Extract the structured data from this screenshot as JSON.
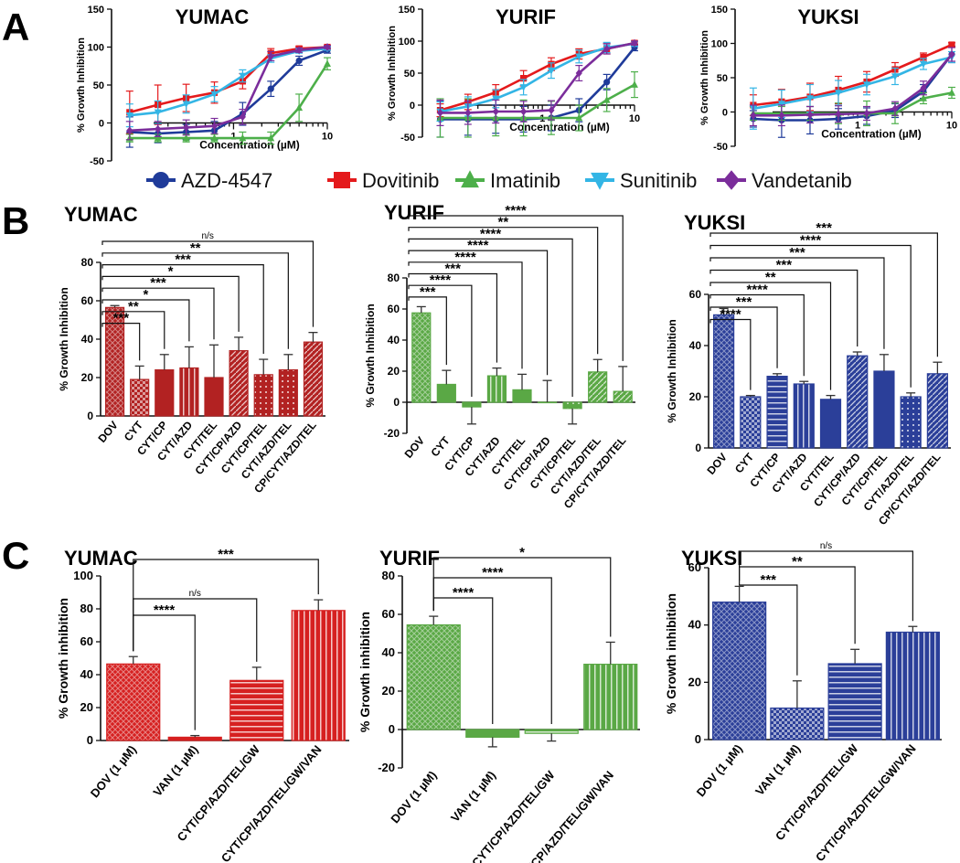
{
  "panel_letters": {
    "A": "A",
    "B": "B",
    "C": "C"
  },
  "legend": [
    {
      "name": "AZD-4547",
      "color": "#1f3b9a",
      "marker": "circle"
    },
    {
      "name": "Dovitinib",
      "color": "#e41a1c",
      "marker": "square"
    },
    {
      "name": "Imatinib",
      "color": "#4daf4a",
      "marker": "triangle-up"
    },
    {
      "name": "Sunitinib",
      "color": "#33b5e5",
      "marker": "triangle-down"
    },
    {
      "name": "Vandetanib",
      "color": "#7b2d9b",
      "marker": "diamond"
    }
  ],
  "chart_data": [
    {
      "id": "A-YUMAC",
      "type": "line",
      "title": "YUMAC",
      "xlabel": "Concentration (µM)",
      "ylabel": "% Growth Inhibition",
      "xscale": "log",
      "xlim": [
        0.05,
        10
      ],
      "ylim": [
        -50,
        150
      ],
      "yticks": [
        -50,
        0,
        50,
        100,
        150
      ],
      "xtick_labels": [
        {
          "value": 1,
          "label": "1"
        },
        {
          "value": 10,
          "label": "10"
        }
      ],
      "x": [
        0.078,
        0.156,
        0.3125,
        0.625,
        1.25,
        2.5,
        5,
        10
      ],
      "series": [
        {
          "name": "AZD-4547",
          "values": [
            -12,
            -14,
            -12,
            -10,
            12,
            45,
            82,
            96
          ],
          "errors": [
            20,
            12,
            10,
            12,
            15,
            10,
            6,
            4
          ]
        },
        {
          "name": "Dovitinib",
          "values": [
            14,
            24,
            33,
            40,
            55,
            92,
            98,
            100
          ],
          "errors": [
            28,
            26,
            18,
            14,
            10,
            6,
            3,
            2
          ]
        },
        {
          "name": "Imatinib",
          "values": [
            -20,
            -20,
            -20,
            -20,
            -20,
            -20,
            20,
            78
          ],
          "errors": [
            5,
            5,
            5,
            5,
            8,
            8,
            18,
            8
          ]
        },
        {
          "name": "Sunitinib",
          "values": [
            10,
            14,
            25,
            38,
            62,
            85,
            95,
            98
          ],
          "errors": [
            15,
            15,
            12,
            10,
            8,
            5,
            3,
            2
          ]
        },
        {
          "name": "Vandetanib",
          "values": [
            -10,
            -8,
            -6,
            -4,
            8,
            88,
            96,
            100
          ],
          "errors": [
            12,
            10,
            10,
            10,
            10,
            6,
            3,
            2
          ]
        }
      ]
    },
    {
      "id": "A-YURIF",
      "type": "line",
      "title": "YURIF",
      "xlabel": "Concentration (µM)",
      "ylabel": "% Growth Inhibition",
      "xscale": "log",
      "xlim": [
        0.05,
        10
      ],
      "ylim": [
        -50,
        150
      ],
      "yticks": [
        -50,
        0,
        50,
        100,
        150
      ],
      "xtick_labels": [
        {
          "value": 1,
          "label": "1"
        },
        {
          "value": 10,
          "label": "10"
        }
      ],
      "x": [
        0.078,
        0.156,
        0.3125,
        0.625,
        1.25,
        2.5,
        5,
        10
      ],
      "series": [
        {
          "name": "AZD-4547",
          "values": [
            -22,
            -22,
            -22,
            -22,
            -20,
            -8,
            36,
            90
          ],
          "errors": [
            28,
            25,
            22,
            20,
            20,
            18,
            12,
            5
          ]
        },
        {
          "name": "Dovitinib",
          "values": [
            -8,
            5,
            20,
            42,
            64,
            80,
            88,
            97
          ],
          "errors": [
            10,
            12,
            12,
            12,
            10,
            8,
            8,
            3
          ]
        },
        {
          "name": "Imatinib",
          "values": [
            -20,
            -20,
            -20,
            -20,
            -20,
            -20,
            8,
            32
          ],
          "errors": [
            30,
            30,
            28,
            28,
            26,
            20,
            18,
            20
          ]
        },
        {
          "name": "Sunitinib",
          "values": [
            -10,
            -2,
            10,
            28,
            54,
            76,
            90,
            96
          ],
          "errors": [
            15,
            15,
            14,
            12,
            12,
            10,
            8,
            4
          ]
        },
        {
          "name": "Vandetanib",
          "values": [
            -12,
            -12,
            -10,
            -10,
            -8,
            50,
            88,
            97
          ],
          "errors": [
            20,
            18,
            18,
            16,
            15,
            12,
            8,
            3
          ]
        }
      ]
    },
    {
      "id": "A-YUKSI",
      "type": "line",
      "title": "YUKSI",
      "xlabel": "Concentration (µM)",
      "ylabel": "% Growth Inhibition",
      "xscale": "log",
      "xlim": [
        0.05,
        10
      ],
      "ylim": [
        -50,
        150
      ],
      "yticks": [
        -50,
        0,
        50,
        100,
        150
      ],
      "xtick_labels": [
        {
          "value": 1,
          "label": "1"
        },
        {
          "value": 10,
          "label": "10"
        }
      ],
      "x": [
        0.078,
        0.156,
        0.3125,
        0.625,
        1.25,
        2.5,
        5,
        10
      ],
      "series": [
        {
          "name": "AZD-4547",
          "values": [
            -10,
            -12,
            -12,
            -10,
            -6,
            2,
            30,
            84
          ],
          "errors": [
            12,
            25,
            20,
            15,
            12,
            10,
            10,
            12
          ]
        },
        {
          "name": "Dovitinib",
          "values": [
            10,
            15,
            22,
            32,
            44,
            62,
            80,
            98
          ],
          "errors": [
            15,
            18,
            20,
            20,
            15,
            10,
            6,
            3
          ]
        },
        {
          "name": "Imatinib",
          "values": [
            -2,
            -2,
            -2,
            -2,
            -2,
            -2,
            20,
            28
          ],
          "errors": [
            10,
            10,
            10,
            15,
            18,
            15,
            8,
            8
          ]
        },
        {
          "name": "Sunitinib",
          "values": [
            5,
            12,
            20,
            28,
            40,
            52,
            70,
            80
          ],
          "errors": [
            30,
            20,
            20,
            18,
            15,
            12,
            8,
            8
          ]
        },
        {
          "name": "Vandetanib",
          "values": [
            -5,
            -5,
            -4,
            -3,
            -2,
            5,
            35,
            84
          ],
          "errors": [
            15,
            15,
            12,
            12,
            10,
            10,
            10,
            10
          ]
        }
      ]
    },
    {
      "id": "B-YUMAC",
      "type": "bar",
      "title": "YUMAC",
      "ylabel": "% Growth Inhibition",
      "ylim": [
        0,
        80
      ],
      "yticks": [
        0,
        20,
        40,
        60,
        80
      ],
      "color": "#b22222",
      "categories": [
        "DOV",
        "CYT",
        "CYT/CP",
        "CYT/AZD",
        "CYT/TEL",
        "CYT/CP/AZD",
        "CYT/CP/TEL",
        "CYT/AZD/TEL",
        "CP/CYT/AZD/TEL"
      ],
      "values": [
        56.5,
        19,
        24,
        25,
        20,
        34,
        21.5,
        24,
        38.5
      ],
      "errors": [
        1,
        7,
        8,
        11,
        17,
        7,
        8,
        8,
        5
      ],
      "patterns": [
        "hatch",
        "check",
        "solid",
        "vstripes",
        "solid",
        "diag",
        "dots",
        "dots",
        "diag"
      ],
      "significance": [
        "***",
        "**",
        "*",
        "***",
        "*",
        "***",
        "**",
        "n/s"
      ]
    },
    {
      "id": "B-YURIF",
      "type": "bar",
      "title": "YURIF",
      "ylabel": "% Growth Inhibition",
      "ylim": [
        -20,
        80
      ],
      "yticks": [
        -20,
        0,
        20,
        40,
        60,
        80
      ],
      "color": "#5aa845",
      "categories": [
        "DOV",
        "CYT",
        "CYT/CP",
        "CYT/AZD",
        "CYT/TEL",
        "CYT/CP/AZD",
        "CYT/CP/TEL",
        "CYT/AZD/TEL",
        "CP/CYT/AZD/TEL"
      ],
      "values": [
        57.5,
        11.5,
        -3,
        17,
        8,
        0,
        -4,
        19.5,
        7
      ],
      "errors": [
        4,
        9,
        11,
        5,
        10,
        14,
        10,
        8,
        16
      ],
      "patterns": [
        "hatch",
        "solid",
        "solid",
        "vstripes",
        "solid",
        "solid",
        "dots",
        "diag",
        "diag"
      ],
      "significance": [
        "***",
        "****",
        "***",
        "****",
        "****",
        "****",
        "**",
        "****"
      ]
    },
    {
      "id": "B-YUKSI",
      "type": "bar",
      "title": "YUKSI",
      "ylabel": "% Growth Inhibition",
      "ylim": [
        0,
        60
      ],
      "yticks": [
        0,
        20,
        40,
        60
      ],
      "color": "#2b3f99",
      "categories": [
        "DOV",
        "CYT",
        "CYT/CP",
        "CYT/AZD",
        "CYT/TEL",
        "CYT/CP/AZD",
        "CYT/CP/TEL",
        "CYT/AZD/TEL",
        "CP/CYT/AZD/TEL"
      ],
      "values": [
        52,
        20,
        28,
        25,
        19,
        36,
        30,
        20,
        29
      ],
      "errors": [
        2.5,
        0.5,
        1,
        1,
        1.5,
        1.5,
        6.5,
        1.5,
        4.5
      ],
      "patterns": [
        "hatch",
        "check",
        "hstripes",
        "vstripes",
        "solid",
        "diag",
        "solid",
        "dots",
        "diag"
      ],
      "significance": [
        "****",
        "***",
        "****",
        "**",
        "***",
        "***",
        "****",
        "***"
      ]
    },
    {
      "id": "C-YUMAC",
      "type": "bar",
      "title": "YUMAC",
      "ylabel": "% Growth inhibition",
      "ylim": [
        0,
        100
      ],
      "yticks": [
        0,
        20,
        40,
        60,
        80,
        100
      ],
      "color": "#d62020",
      "categories": [
        "DOV (1 µM)",
        "VAN (1 µM)",
        "CYT/CP/AZD/TEL/GW",
        "CYT/CP/AZD/TEL/GW/VAN"
      ],
      "values": [
        46.5,
        2,
        36.5,
        79
      ],
      "errors": [
        4.5,
        1,
        8,
        6.5
      ],
      "patterns": [
        "hatch",
        "solid",
        "hstripes",
        "vstripes"
      ],
      "significance": [
        "****",
        "n/s",
        "***"
      ]
    },
    {
      "id": "C-YURIF",
      "type": "bar",
      "title": "YURIF",
      "ylabel": "% Growth inhibition",
      "ylim": [
        -20,
        80
      ],
      "yticks": [
        -20,
        0,
        20,
        40,
        60,
        80
      ],
      "color": "#5aa845",
      "categories": [
        "DOV (1 µM)",
        "VAN (1 µM)",
        "CYT/CP/AZD/TEL/GW",
        "CYT/CP/AZD/TEL/GW/VAN"
      ],
      "values": [
        54.5,
        -4,
        -2,
        34
      ],
      "errors": [
        4.5,
        5,
        4,
        11.5
      ],
      "patterns": [
        "hatch",
        "solid",
        "hstripes",
        "vstripes"
      ],
      "significance": [
        "****",
        "****",
        "*"
      ]
    },
    {
      "id": "C-YUKSI",
      "type": "bar",
      "title": "YUKSI",
      "ylabel": "% Growth inhibition",
      "ylim": [
        0,
        60
      ],
      "yticks": [
        0,
        20,
        40,
        60
      ],
      "color": "#2b3f99",
      "categories": [
        "DOV (1 µM)",
        "VAN (1 µM)",
        "CYT/CP/AZD/TEL/GW",
        "CYT/CP/AZD/TEL/GW/VAN"
      ],
      "values": [
        48,
        11,
        26.5,
        37.5
      ],
      "errors": [
        5.5,
        9.5,
        5,
        2
      ],
      "patterns": [
        "hatch",
        "check",
        "hstripes",
        "vstripes"
      ],
      "significance": [
        "***",
        "**",
        "n/s"
      ]
    }
  ]
}
